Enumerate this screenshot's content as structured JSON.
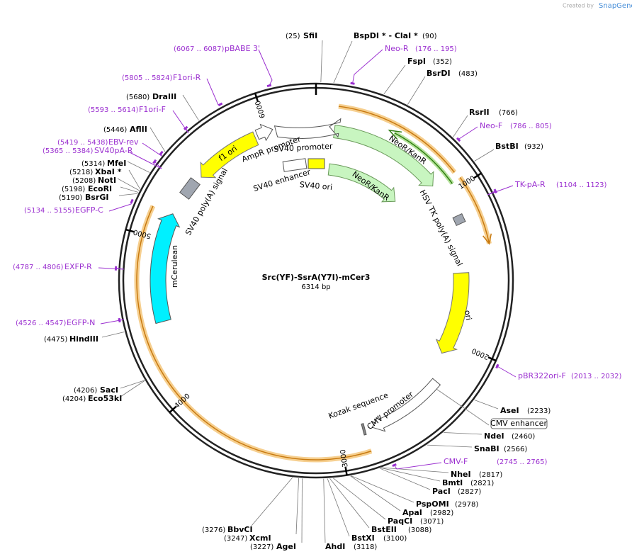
{
  "header": {
    "credit": "Created by",
    "brand": "SnapGene"
  },
  "title": "Src(YF)-SsrA(Y7I)-mCer3",
  "length": "6314 bp",
  "ticks": [
    "1000",
    "2000",
    "3000",
    "4000",
    "5000",
    "6000"
  ],
  "sites": [
    {
      "name": "SfiI",
      "position": "(25)"
    },
    {
      "name": "BspDI *  - ClaI *",
      "position": "(90)"
    },
    {
      "name": "FspI",
      "position": "(352)"
    },
    {
      "name": "BsrDI",
      "position": "(483)"
    },
    {
      "name": "RsrII",
      "position": "(766)"
    },
    {
      "name": "BstBI",
      "position": "(932)"
    },
    {
      "name": "AseI",
      "position": "(2233)"
    },
    {
      "name": "NdeI",
      "position": "(2460)"
    },
    {
      "name": "SnaBI",
      "position": "(2566)"
    },
    {
      "name": "NheI",
      "position": "(2817)"
    },
    {
      "name": "BmtI",
      "position": "(2821)"
    },
    {
      "name": "PacI",
      "position": "(2827)"
    },
    {
      "name": "PspOMI",
      "position": "(2978)"
    },
    {
      "name": "ApaI",
      "position": "(2982)"
    },
    {
      "name": "PaqCI",
      "position": "(3071)"
    },
    {
      "name": "BstEII",
      "position": "(3088)"
    },
    {
      "name": "BstXI",
      "position": "(3100)"
    },
    {
      "name": "AhdI",
      "position": "(3118)"
    },
    {
      "name": "AgeI",
      "position": "(3227)"
    },
    {
      "name": "XcmI",
      "position": "(3247)"
    },
    {
      "name": "BbvCI",
      "position": "(3276)"
    },
    {
      "name": "SacI",
      "position": "(4206)"
    },
    {
      "name": "Eco53kI",
      "position": "(4204)"
    },
    {
      "name": "HindIII",
      "position": "(4475)"
    },
    {
      "name": "BsrGI",
      "position": "(5190)"
    },
    {
      "name": "EcoRI",
      "position": "(5198)"
    },
    {
      "name": "NotI",
      "position": "(5208)"
    },
    {
      "name": "XbaI *",
      "position": "(5218)"
    },
    {
      "name": "MfeI",
      "position": "(5314)"
    },
    {
      "name": "AflII",
      "position": "(5446)"
    },
    {
      "name": "DraIII",
      "position": "(5680)"
    }
  ],
  "primers": [
    {
      "name": "Neo-R",
      "range": "(176 .. 195)"
    },
    {
      "name": "Neo-F",
      "range": "(786 .. 805)"
    },
    {
      "name": "TK-pA-R",
      "range": "(1104 .. 1123)"
    },
    {
      "name": "pBR322ori-F",
      "range": "(2013 .. 2032)"
    },
    {
      "name": "CMV-F",
      "range": "(2745 .. 2765)"
    },
    {
      "name": "EGFP-N",
      "range": "(4526 .. 4547)"
    },
    {
      "name": "EXFP-R",
      "range": "(4787 .. 4806)"
    },
    {
      "name": "EGFP-C",
      "range": "(5134 .. 5155)"
    },
    {
      "name": "SV40pA-R",
      "range": "(5365 .. 5384)"
    },
    {
      "name": "EBV-rev",
      "range": "(5419 .. 5438)"
    },
    {
      "name": "F1ori-F",
      "range": "(5593 .. 5614)"
    },
    {
      "name": "F1ori-R",
      "range": "(5805 .. 5824)"
    },
    {
      "name": "pBABE 3'",
      "range": "(6067 .. 6087)"
    }
  ],
  "features": [
    "AmpR promoter",
    "SV40 promoter",
    "SV40 enhancer",
    "SV40 ori",
    "NeoR/KanR",
    "NeoR/KanR",
    "HSV TK poly(A) signal",
    "ori",
    "f1 ori",
    "SV40 poly(A) signal",
    "mCerulean",
    "Kozak sequence",
    "CMV promoter",
    "CMV enhancer"
  ]
}
